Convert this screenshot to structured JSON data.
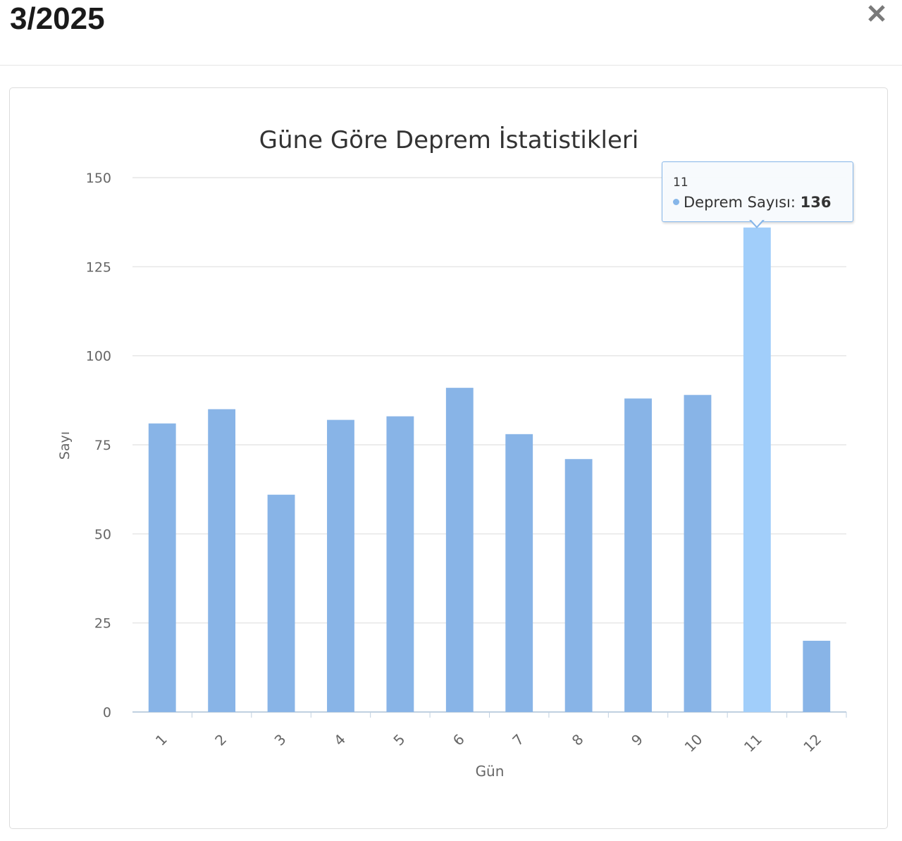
{
  "modal": {
    "title": "3/2025",
    "close_icon": "close-icon"
  },
  "chart_data": {
    "type": "bar",
    "title": "Güne Göre Deprem İstatistikleri",
    "xlabel": "Gün",
    "ylabel": "Sayı",
    "categories": [
      "1",
      "2",
      "3",
      "4",
      "5",
      "6",
      "7",
      "8",
      "9",
      "10",
      "11",
      "12"
    ],
    "series": [
      {
        "name": "Deprem Sayısı",
        "values": [
          81,
          85,
          61,
          82,
          83,
          91,
          78,
          71,
          88,
          89,
          136,
          20
        ]
      }
    ],
    "ylim": [
      0,
      150
    ],
    "yticks": [
      0,
      25,
      50,
      75,
      100,
      125,
      150
    ],
    "grid": true,
    "bar_color": "#88b4e7",
    "highlight_color": "#a1cefa",
    "highlighted_index": 10
  },
  "tooltip": {
    "header": "11",
    "series_label": "Deprem Sayısı:",
    "value": "136"
  }
}
